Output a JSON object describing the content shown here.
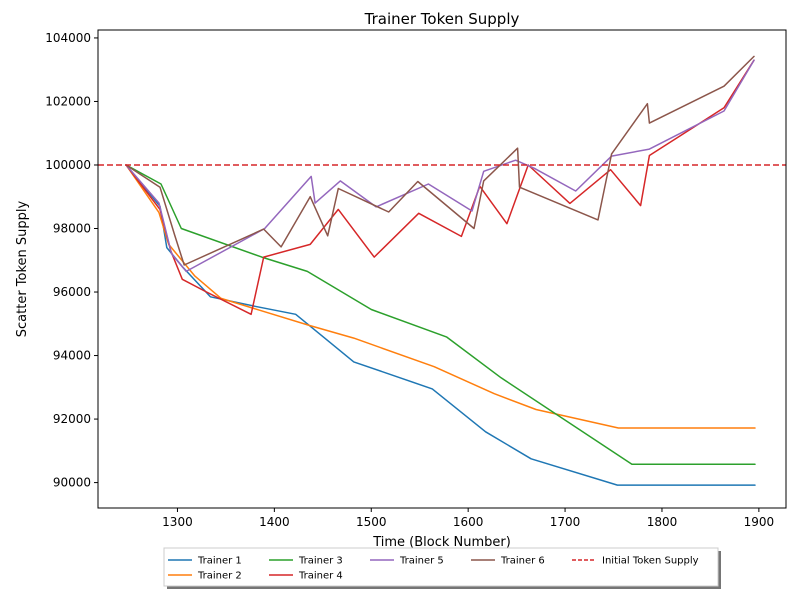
{
  "chart_data": {
    "type": "line",
    "title": "Trainer Token Supply",
    "xlabel": "Time (Block Number)",
    "ylabel": "Scatter Token Supply",
    "xlim": [
      1218,
      1928
    ],
    "ylim": [
      89200,
      104250
    ],
    "xticks": [
      1300,
      1400,
      1500,
      1600,
      1700,
      1800,
      1900
    ],
    "yticks": [
      90000,
      92000,
      94000,
      96000,
      98000,
      100000,
      102000,
      104000
    ],
    "grid": false,
    "legend_position": "bottom-center",
    "reference_line": {
      "name": "Initial Token Supply",
      "y": 100000,
      "color": "#d62728",
      "style": "dashed"
    },
    "series": [
      {
        "name": "Trainer 1",
        "color": "#1f77b4",
        "points": [
          [
            1247,
            100000
          ],
          [
            1282,
            98700
          ],
          [
            1289,
            97400
          ],
          [
            1305,
            96800
          ],
          [
            1334,
            95850
          ],
          [
            1380,
            95550
          ],
          [
            1422,
            95300
          ],
          [
            1482,
            93800
          ],
          [
            1563,
            92950
          ],
          [
            1618,
            91600
          ],
          [
            1665,
            90750
          ],
          [
            1754,
            89920
          ],
          [
            1896,
            89920
          ]
        ]
      },
      {
        "name": "Trainer 2",
        "color": "#ff7f0e",
        "points": [
          [
            1247,
            100000
          ],
          [
            1281,
            98500
          ],
          [
            1291,
            97500
          ],
          [
            1318,
            96500
          ],
          [
            1345,
            95800
          ],
          [
            1436,
            94950
          ],
          [
            1482,
            94550
          ],
          [
            1565,
            93650
          ],
          [
            1627,
            92800
          ],
          [
            1670,
            92300
          ],
          [
            1755,
            91720
          ],
          [
            1896,
            91720
          ]
        ]
      },
      {
        "name": "Trainer 3",
        "color": "#2ca02c",
        "points": [
          [
            1247,
            100000
          ],
          [
            1283,
            99400
          ],
          [
            1304,
            98000
          ],
          [
            1387,
            97100
          ],
          [
            1434,
            96650
          ],
          [
            1500,
            95450
          ],
          [
            1578,
            94580
          ],
          [
            1634,
            93300
          ],
          [
            1769,
            90580
          ],
          [
            1896,
            90580
          ]
        ]
      },
      {
        "name": "Trainer 4",
        "color": "#d62728",
        "points": [
          [
            1247,
            100000
          ],
          [
            1282,
            98600
          ],
          [
            1293,
            97300
          ],
          [
            1305,
            96400
          ],
          [
            1330,
            96000
          ],
          [
            1376,
            95300
          ],
          [
            1389,
            97100
          ],
          [
            1437,
            97500
          ],
          [
            1466,
            98600
          ],
          [
            1503,
            97100
          ],
          [
            1549,
            98480
          ],
          [
            1593,
            97750
          ],
          [
            1612,
            99330
          ],
          [
            1640,
            98150
          ],
          [
            1662,
            100000
          ],
          [
            1705,
            98790
          ],
          [
            1747,
            99850
          ],
          [
            1778,
            98720
          ],
          [
            1787,
            100300
          ],
          [
            1864,
            101800
          ],
          [
            1895,
            103300
          ]
        ]
      },
      {
        "name": "Trainer 5",
        "color": "#9467bd",
        "points": [
          [
            1247,
            100000
          ],
          [
            1281,
            98800
          ],
          [
            1294,
            97200
          ],
          [
            1309,
            96650
          ],
          [
            1390,
            98000
          ],
          [
            1438,
            99640
          ],
          [
            1442,
            98800
          ],
          [
            1468,
            99500
          ],
          [
            1505,
            98680
          ],
          [
            1559,
            99400
          ],
          [
            1604,
            98550
          ],
          [
            1616,
            99800
          ],
          [
            1649,
            100150
          ],
          [
            1668,
            99900
          ],
          [
            1711,
            99180
          ],
          [
            1748,
            100280
          ],
          [
            1787,
            100500
          ],
          [
            1864,
            101700
          ],
          [
            1895,
            103300
          ]
        ]
      },
      {
        "name": "Trainer 6",
        "color": "#8c564b",
        "points": [
          [
            1247,
            100000
          ],
          [
            1282,
            99300
          ],
          [
            1297,
            97800
          ],
          [
            1307,
            96850
          ],
          [
            1389,
            97980
          ],
          [
            1407,
            97420
          ],
          [
            1437,
            99000
          ],
          [
            1455,
            97770
          ],
          [
            1466,
            99260
          ],
          [
            1518,
            98520
          ],
          [
            1548,
            99480
          ],
          [
            1606,
            98000
          ],
          [
            1616,
            99500
          ],
          [
            1651,
            100530
          ],
          [
            1653,
            99300
          ],
          [
            1734,
            98270
          ],
          [
            1748,
            100350
          ],
          [
            1785,
            101930
          ],
          [
            1787,
            101320
          ],
          [
            1864,
            102480
          ],
          [
            1895,
            103420
          ]
        ]
      }
    ]
  }
}
